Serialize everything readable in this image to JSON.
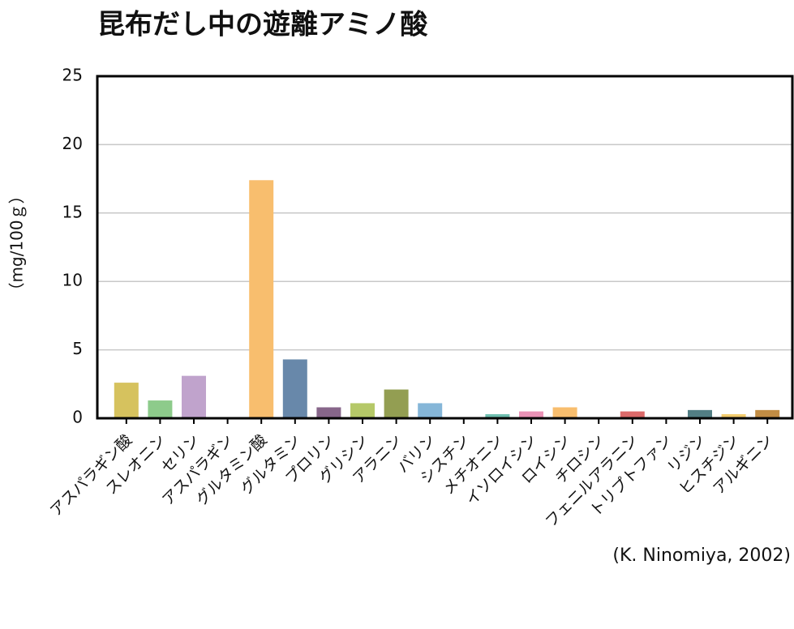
{
  "chart_data": {
    "type": "bar",
    "title": "昆布だし中の遊離アミノ酸",
    "y_label": "（mg/100ｇ）",
    "source": "(K. Ninomiya, 2002)",
    "categories": [
      "アスパラギン酸",
      "スレオニン",
      "セリン",
      "アスパラギン",
      "グルタミン酸",
      "グルタミン",
      "プロリン",
      "グリシン",
      "アラニン",
      "バリン",
      "シスチン",
      "メチオニン",
      "イソロイシン",
      "ロイシン",
      "チロシン",
      "フェニルアラニン",
      "トリプトファン",
      "リジン",
      "ヒスチジン",
      "アルギニン"
    ],
    "values": [
      2.6,
      1.3,
      3.1,
      0,
      17.4,
      4.3,
      0.8,
      1.1,
      2.1,
      1.1,
      0,
      0.3,
      0.5,
      0.8,
      0,
      0.5,
      0,
      0.6,
      0.3,
      0.6
    ],
    "colors": [
      "#d6c25e",
      "#8dcb8b",
      "#c0a3cc",
      "#b0b0b0",
      "#f8be6e",
      "#6888aa",
      "#87668a",
      "#b5c868",
      "#939e52",
      "#85b6d8",
      "#b0b0b0",
      "#6fbfb0",
      "#ea92b6",
      "#f8be6e",
      "#b0b0b0",
      "#dc6a6a",
      "#b0b0b0",
      "#527e84",
      "#f3cc6e",
      "#c28d44"
    ],
    "ylim": [
      0,
      25
    ],
    "yticks": [
      0,
      5,
      10,
      15,
      20,
      25
    ],
    "grid": true
  }
}
